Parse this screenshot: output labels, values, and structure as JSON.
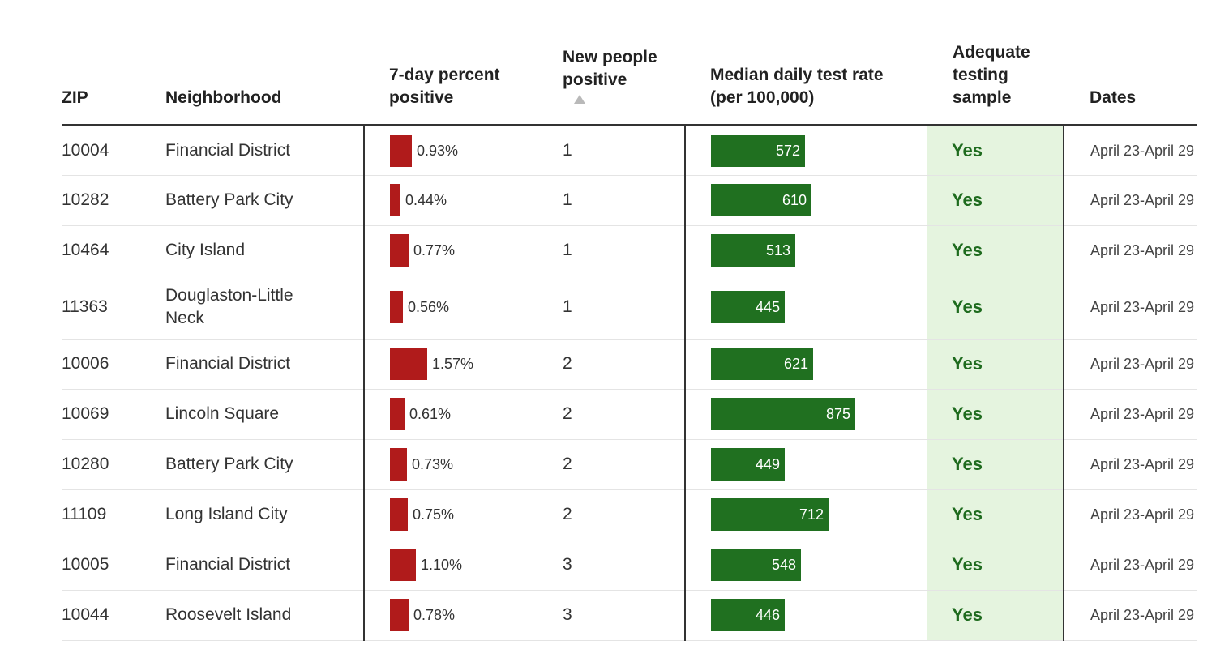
{
  "header": {
    "zip": "ZIP",
    "neighborhood": "Neighborhood",
    "pct_positive": "7-day percent positive",
    "new_positive": "New people positive",
    "test_rate": "Median daily test rate (per 100,000)",
    "adequate": "Adequate testing sample",
    "dates": "Dates"
  },
  "colors": {
    "pct_bar": "#b01b1b",
    "rate_bar": "#207020",
    "adequate_bg": "#e5f4df",
    "adequate_text": "#1e6b1e"
  },
  "rows": [
    {
      "zip": "10004",
      "neighborhood": "Financial District",
      "pct": 0.93,
      "pct_label": "0.93%",
      "new": "1",
      "rate": 572,
      "rate_label": "572",
      "adequate": "Yes",
      "dates": "April 23-April 29"
    },
    {
      "zip": "10282",
      "neighborhood": "Battery Park City",
      "pct": 0.44,
      "pct_label": "0.44%",
      "new": "1",
      "rate": 610,
      "rate_label": "610",
      "adequate": "Yes",
      "dates": "April 23-April 29"
    },
    {
      "zip": "10464",
      "neighborhood": "City Island",
      "pct": 0.77,
      "pct_label": "0.77%",
      "new": "1",
      "rate": 513,
      "rate_label": "513",
      "adequate": "Yes",
      "dates": "April 23-April 29"
    },
    {
      "zip": "11363",
      "neighborhood": "Douglaston-Little Neck",
      "pct": 0.56,
      "pct_label": "0.56%",
      "new": "1",
      "rate": 445,
      "rate_label": "445",
      "adequate": "Yes",
      "dates": "April 23-April 29"
    },
    {
      "zip": "10006",
      "neighborhood": "Financial District",
      "pct": 1.57,
      "pct_label": "1.57%",
      "new": "2",
      "rate": 621,
      "rate_label": "621",
      "adequate": "Yes",
      "dates": "April 23-April 29"
    },
    {
      "zip": "10069",
      "neighborhood": "Lincoln Square",
      "pct": 0.61,
      "pct_label": "0.61%",
      "new": "2",
      "rate": 875,
      "rate_label": "875",
      "adequate": "Yes",
      "dates": "April 23-April 29"
    },
    {
      "zip": "10280",
      "neighborhood": "Battery Park City",
      "pct": 0.73,
      "pct_label": "0.73%",
      "new": "2",
      "rate": 449,
      "rate_label": "449",
      "adequate": "Yes",
      "dates": "April 23-April 29"
    },
    {
      "zip": "11109",
      "neighborhood": "Long Island City",
      "pct": 0.75,
      "pct_label": "0.75%",
      "new": "2",
      "rate": 712,
      "rate_label": "712",
      "adequate": "Yes",
      "dates": "April 23-April 29"
    },
    {
      "zip": "10005",
      "neighborhood": "Financial District",
      "pct": 1.1,
      "pct_label": "1.10%",
      "new": "3",
      "rate": 548,
      "rate_label": "548",
      "adequate": "Yes",
      "dates": "April 23-April 29"
    },
    {
      "zip": "10044",
      "neighborhood": "Roosevelt Island",
      "pct": 0.78,
      "pct_label": "0.78%",
      "new": "3",
      "rate": 446,
      "rate_label": "446",
      "adequate": "Yes",
      "dates": "April 23-April 29"
    }
  ]
}
